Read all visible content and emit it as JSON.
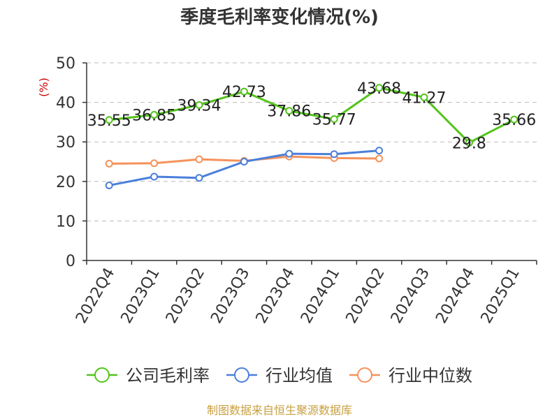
{
  "chart_data": {
    "type": "line",
    "title": "季度毛利率变化情况(%)",
    "ylabel": "(%)",
    "ylim": [
      0,
      50
    ],
    "yticks": [
      0,
      10,
      20,
      30,
      40,
      50
    ],
    "grid": true,
    "legend_position": "bottom",
    "categories": [
      "2022Q4",
      "2023Q1",
      "2023Q2",
      "2023Q3",
      "2023Q4",
      "2024Q1",
      "2024Q2",
      "2024Q3",
      "2024Q4",
      "2025Q1"
    ],
    "series": [
      {
        "name": "公司毛利率",
        "color": "#52c41a",
        "data_labels": true,
        "values": [
          35.55,
          36.85,
          39.34,
          42.73,
          37.86,
          35.77,
          43.68,
          41.27,
          29.8,
          35.66
        ]
      },
      {
        "name": "行业均值",
        "color": "#4a7fdb",
        "data_labels": false,
        "values": [
          19.0,
          21.2,
          20.9,
          25.0,
          27.0,
          26.9,
          27.8,
          null,
          null,
          null
        ]
      },
      {
        "name": "行业中位数",
        "color": "#f5925a",
        "data_labels": false,
        "values": [
          24.5,
          24.6,
          25.6,
          25.2,
          26.3,
          25.9,
          25.8,
          null,
          null,
          null
        ]
      }
    ],
    "source": "制图数据来自恒生聚源数据库"
  }
}
